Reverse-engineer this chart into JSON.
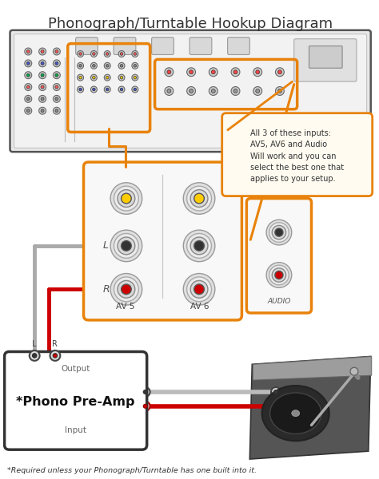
{
  "title": "Phonograph/Turntable Hookup Diagram",
  "footnote": "*Required unless your Phonograph/Turntable has one built into it.",
  "bg_color": "#ffffff",
  "title_color": "#333333",
  "orange_color": "#E8820A",
  "dark_color": "#333333",
  "red_color": "#CC0000",
  "gray_color": "#888888",
  "light_gray": "#cccccc",
  "receiver_bg": "#f0f0f0",
  "callout_text": "All 3 of these inputs:\nAV5, AV6 and Audio\nWill work and you can\nselect the best one that\napplies to your setup."
}
